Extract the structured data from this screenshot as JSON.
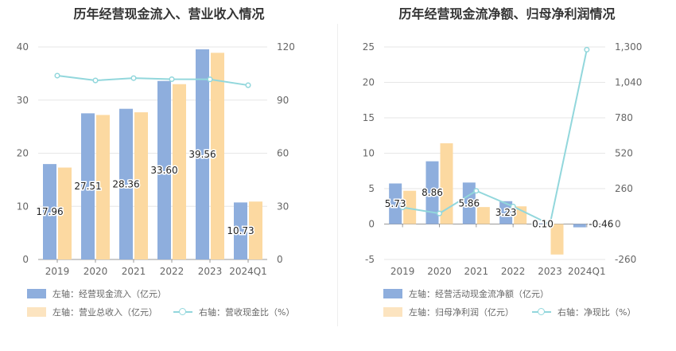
{
  "chart_data": [
    {
      "type": "bar",
      "title": "历年经营现金流入、营业收入情况",
      "categories": [
        "2019",
        "2020",
        "2021",
        "2022",
        "2023",
        "2024Q1"
      ],
      "left_axis": {
        "ylim": [
          0,
          40
        ],
        "ticks": [
          "0",
          "10",
          "20",
          "30",
          "40"
        ],
        "tick_values": [
          0,
          10,
          20,
          30,
          40
        ]
      },
      "right_axis": {
        "ylim": [
          0,
          120
        ],
        "ticks": [
          "0",
          "30",
          "60",
          "90",
          "120"
        ],
        "tick_values": [
          0,
          30,
          60,
          90,
          120
        ]
      },
      "series": [
        {
          "name": "左轴：经营现金流入（亿元）",
          "kind": "bar",
          "axis": "left",
          "color": "#8eaedd",
          "values": [
            17.96,
            27.51,
            28.36,
            33.6,
            39.56,
            10.73
          ],
          "labels": [
            "17.96",
            "27.51",
            "28.36",
            "33.60",
            "39.56",
            "10.73"
          ]
        },
        {
          "name": "左轴：营业总收入（亿元）",
          "kind": "bar",
          "axis": "left",
          "color": "#fcd9a1",
          "values": [
            17.3,
            27.2,
            27.7,
            33.0,
            38.9,
            10.9
          ]
        },
        {
          "name": "右轴：营收现金比（%）",
          "kind": "line",
          "axis": "right",
          "color": "#92d7dc",
          "values": [
            103.8,
            101.1,
            102.4,
            101.8,
            101.7,
            98.4
          ]
        }
      ]
    },
    {
      "type": "bar",
      "title": "历年经营现金流净额、归母净利润情况",
      "categories": [
        "2019",
        "2020",
        "2021",
        "2022",
        "2023",
        "2024Q1"
      ],
      "left_axis": {
        "ylim": [
          -5,
          25
        ],
        "ticks": [
          "-5",
          "0",
          "5",
          "10",
          "15",
          "20",
          "25"
        ],
        "tick_values": [
          -5,
          0,
          5,
          10,
          15,
          20,
          25
        ]
      },
      "right_axis": {
        "ylim": [
          -260,
          1300
        ],
        "ticks": [
          "-260",
          "0",
          "260",
          "520",
          "780",
          "1,040",
          "1,300"
        ],
        "tick_values": [
          -260,
          0,
          260,
          520,
          780,
          1040,
          1300
        ]
      },
      "series": [
        {
          "name": "左轴：经营活动现金流净额（亿元）",
          "kind": "bar",
          "axis": "left",
          "color": "#8eaedd",
          "values": [
            5.73,
            8.86,
            5.86,
            3.23,
            0.1,
            -0.46
          ],
          "labels": [
            "5.73",
            "8.86",
            "5.86",
            "3.23",
            "0.10",
            "-0.46"
          ]
        },
        {
          "name": "左轴：归母净利润（亿元）",
          "kind": "bar",
          "axis": "left",
          "color": "#fcd9a1",
          "values": [
            4.7,
            11.4,
            2.4,
            2.5,
            -4.3,
            null
          ]
        },
        {
          "name": "右轴：净现比（%）",
          "kind": "line",
          "axis": "right",
          "color": "#92d7dc",
          "values": [
            122,
            78,
            244,
            129,
            -2,
            1280
          ]
        }
      ]
    }
  ]
}
